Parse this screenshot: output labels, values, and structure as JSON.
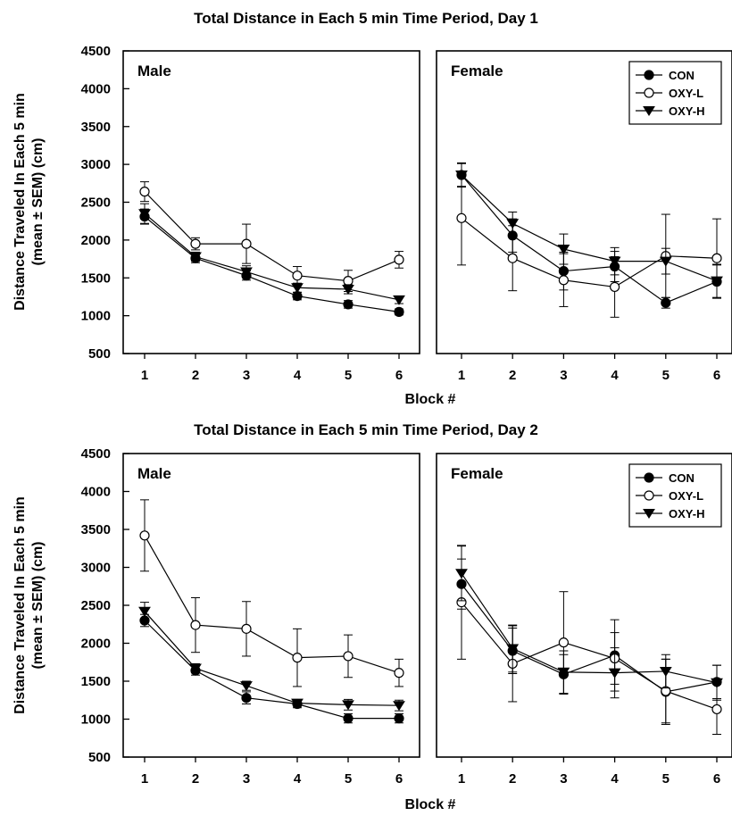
{
  "chart_data": [
    {
      "type": "line",
      "title": "Total Distance in Each 5 min Time Period, Day 1",
      "xlabel": "Block #",
      "ylabel_line1": "Distance Traveled In Each 5 min",
      "ylabel_line2": "(mean ± SEM) (cm)",
      "x": [
        1,
        2,
        3,
        4,
        5,
        6
      ],
      "ylim": [
        500,
        4500
      ],
      "yticks": [
        500,
        1000,
        1500,
        2000,
        2500,
        3000,
        3500,
        4000,
        4500
      ],
      "panels": [
        {
          "label": "Male",
          "series": [
            {
              "values": [
                2310,
                1760,
                1530,
                1260,
                1150,
                1050
              ],
              "err": [
                100,
                60,
                60,
                50,
                50,
                40
              ]
            },
            {
              "values": [
                2640,
                1950,
                1950,
                1530,
                1460,
                1740
              ],
              "err": [
                130,
                80,
                260,
                120,
                140,
                110
              ]
            },
            {
              "values": [
                2350,
                1780,
                1580,
                1370,
                1350,
                1210
              ],
              "err": [
                130,
                60,
                80,
                60,
                60,
                50
              ]
            }
          ]
        },
        {
          "label": "Female",
          "legend": [
            "CON",
            "OXY-L",
            "OXY-H"
          ],
          "series": [
            {
              "values": [
                2860,
                2060,
                1590,
                1650,
                1170,
                1450
              ],
              "err": [
                150,
                220,
                250,
                200,
                70,
                220
              ]
            },
            {
              "values": [
                2290,
                1760,
                1470,
                1380,
                1790,
                1760
              ],
              "err": [
                620,
                430,
                350,
                400,
                550,
                520
              ]
            },
            {
              "values": [
                2860,
                2220,
                1880,
                1720,
                1720,
                1460
              ],
              "err": [
                160,
                150,
                200,
                180,
                170,
                220
              ]
            }
          ]
        }
      ]
    },
    {
      "type": "line",
      "title": "Total Distance in Each 5 min Time Period, Day 2",
      "xlabel": "Block #",
      "ylabel_line1": "Distance Traveled In Each 5 min",
      "ylabel_line2": "(mean ± SEM) (cm)",
      "x": [
        1,
        2,
        3,
        4,
        5,
        6
      ],
      "ylim": [
        500,
        4500
      ],
      "yticks": [
        500,
        1000,
        1500,
        2000,
        2500,
        3000,
        3500,
        4000,
        4500
      ],
      "panels": [
        {
          "label": "Male",
          "series": [
            {
              "values": [
                2300,
                1640,
                1280,
                1200,
                1010,
                1010
              ],
              "err": [
                80,
                60,
                80,
                50,
                60,
                60
              ]
            },
            {
              "values": [
                3420,
                2240,
                2190,
                1810,
                1830,
                1610
              ],
              "err": [
                470,
                360,
                360,
                380,
                280,
                180
              ]
            },
            {
              "values": [
                2420,
                1670,
                1440,
                1210,
                1190,
                1180
              ],
              "err": [
                120,
                60,
                60,
                40,
                70,
                70
              ]
            }
          ]
        },
        {
          "label": "Female",
          "legend": [
            "CON",
            "OXY-L",
            "OXY-H"
          ],
          "series": [
            {
              "values": [
                2780,
                1900,
                1590,
                1840,
                1360,
                1490
              ],
              "err": [
                330,
                300,
                260,
                470,
                430,
                220
              ]
            },
            {
              "values": [
                2540,
                1730,
                2010,
                1800,
                1370,
                1130
              ],
              "err": [
                750,
                500,
                670,
                340,
                420,
                330
              ]
            },
            {
              "values": [
                2920,
                1930,
                1620,
                1610,
                1630,
                1480
              ],
              "err": [
                360,
                310,
                280,
                330,
                220,
                230
              ]
            }
          ]
        }
      ]
    }
  ]
}
